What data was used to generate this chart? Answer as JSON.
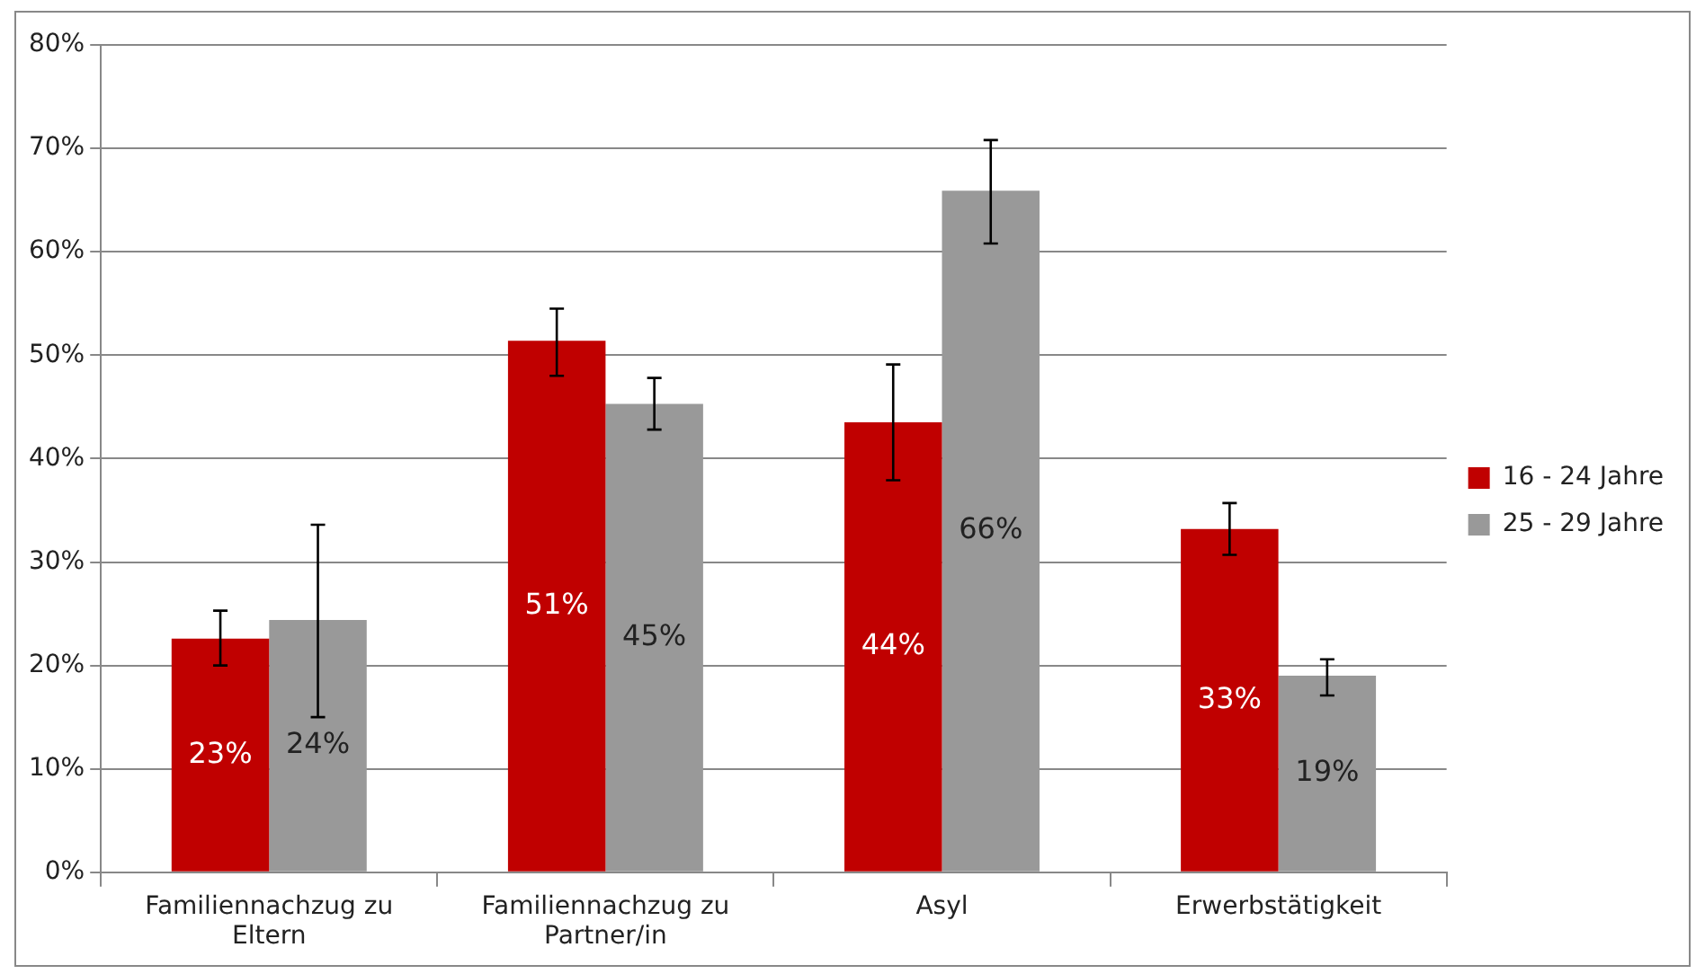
{
  "chart_data": {
    "type": "bar",
    "categories": [
      "Familiennachzug zu Eltern",
      "Familiennachzug zu Partner/in",
      "Asyl",
      "Erwerbstätigkeit"
    ],
    "series": [
      {
        "name": "16 - 24 Jahre",
        "color": "#c00000",
        "values": [
          22.6,
          51.4,
          43.5,
          33.2
        ],
        "errors": [
          [
            20.0,
            25.3
          ],
          [
            48.0,
            54.5
          ],
          [
            37.9,
            49.1
          ],
          [
            30.7,
            35.7
          ]
        ],
        "value_labels": [
          "23%",
          "51%",
          "44%",
          "33%"
        ]
      },
      {
        "name": "25 - 29 Jahre",
        "color": "#999999",
        "values": [
          24.4,
          45.3,
          65.9,
          19.0
        ],
        "errors": [
          [
            15.0,
            33.6
          ],
          [
            42.8,
            47.8
          ],
          [
            60.8,
            70.8
          ],
          [
            17.1,
            20.6
          ]
        ],
        "value_labels": [
          "24%",
          "45%",
          "66%",
          "19%"
        ]
      }
    ],
    "ylim": [
      0,
      80
    ],
    "yticks": [
      {
        "value": 0,
        "label": "0%"
      },
      {
        "value": 10,
        "label": "10%"
      },
      {
        "value": 20,
        "label": "20%"
      },
      {
        "value": 30,
        "label": "30%"
      },
      {
        "value": 40,
        "label": "40%"
      },
      {
        "value": 50,
        "label": "50%"
      },
      {
        "value": 60,
        "label": "60%"
      },
      {
        "value": 70,
        "label": "70%"
      },
      {
        "value": 80,
        "label": "80%"
      }
    ],
    "grid": "y",
    "legend": "right"
  }
}
